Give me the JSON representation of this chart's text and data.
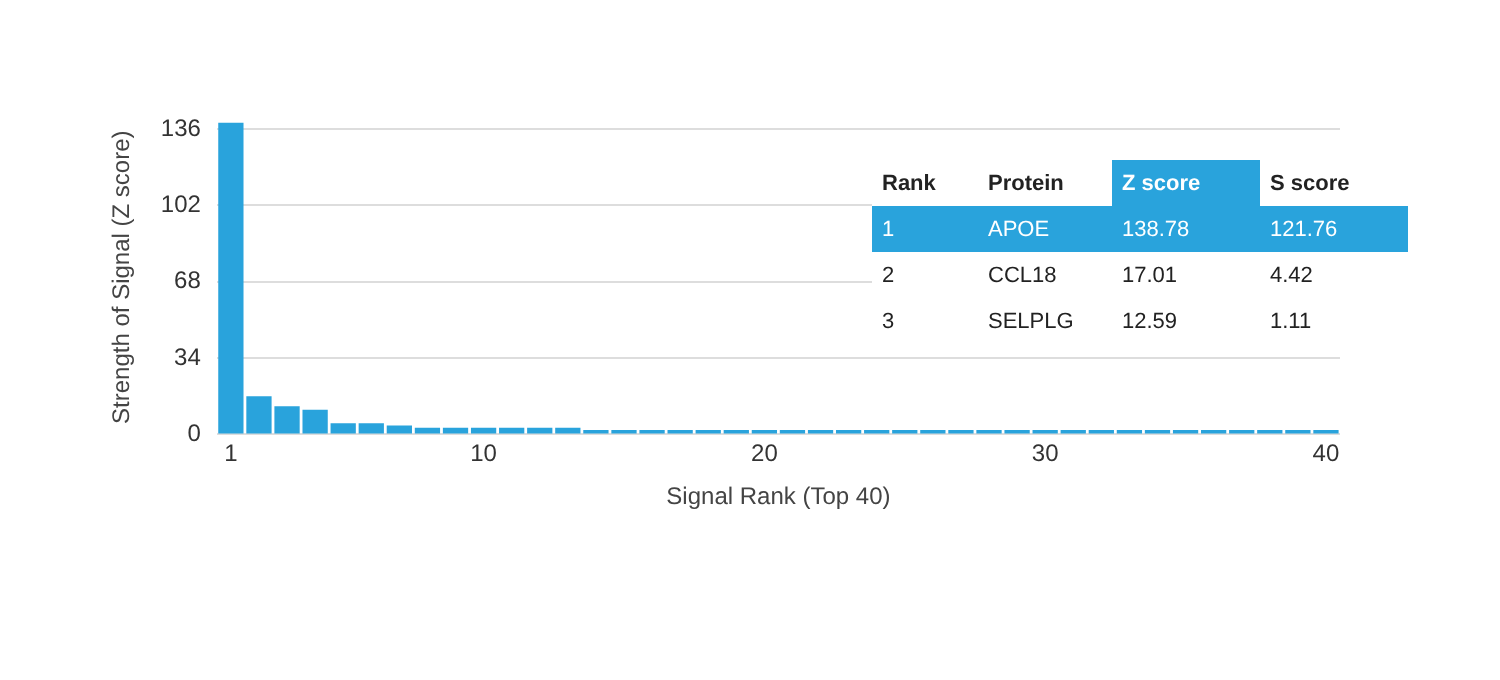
{
  "chart_data": {
    "type": "bar",
    "xlabel": "Signal Rank (Top 40)",
    "ylabel": "Strength of Signal (Z score)",
    "categories": [
      "1",
      null,
      null,
      null,
      null,
      null,
      null,
      null,
      null,
      "10",
      null,
      null,
      null,
      null,
      null,
      null,
      null,
      null,
      null,
      "20",
      null,
      null,
      null,
      null,
      null,
      null,
      null,
      null,
      null,
      "30",
      null,
      null,
      null,
      null,
      null,
      null,
      null,
      null,
      null,
      "40"
    ],
    "values": [
      138.78,
      17.01,
      12.59,
      11,
      5,
      5,
      4,
      3,
      3,
      3,
      3,
      3,
      3,
      2,
      2,
      2,
      2,
      2,
      2,
      2,
      2,
      2,
      2,
      2,
      2,
      2,
      2,
      2,
      2,
      2,
      2,
      2,
      2,
      2,
      2,
      2,
      2,
      2,
      2,
      2
    ],
    "color": "#29a3dc",
    "ylim": [
      0,
      140
    ],
    "yticks": [
      0,
      34,
      68,
      102,
      136
    ],
    "grid": "y",
    "legend": false,
    "annotations": [
      "Rank",
      "Protein",
      "Z score",
      "S score",
      "1",
      "APOE",
      "138.78",
      "121.76",
      "2",
      "CCL18",
      "17.01",
      "4.42",
      "3",
      "SELPLG",
      "12.59",
      "1.11"
    ]
  }
}
